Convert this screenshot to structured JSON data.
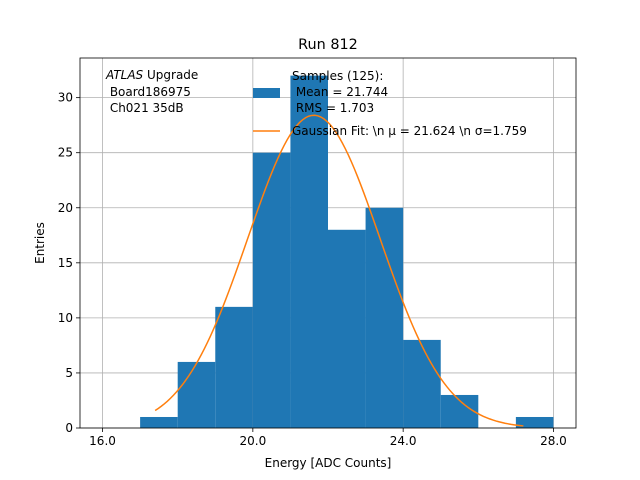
{
  "chart_data": {
    "type": "bar",
    "title": "Run 812",
    "xlabel": "Energy [ADC Counts]",
    "ylabel": "Entries",
    "xlim": [
      15.4,
      28.6
    ],
    "ylim": [
      0,
      33.6
    ],
    "xticks": [
      16.0,
      20.0,
      24.0,
      28.0
    ],
    "xtick_labels": [
      "16.0",
      "20.0",
      "24.0",
      "28.0"
    ],
    "yticks": [
      0,
      5,
      10,
      15,
      20,
      25,
      30
    ],
    "ytick_labels": [
      "0",
      "5",
      "10",
      "15",
      "20",
      "25",
      "30"
    ],
    "grid": true,
    "bins": [
      {
        "x0": 17.0,
        "x1": 18.0,
        "count": 1
      },
      {
        "x0": 18.0,
        "x1": 19.0,
        "count": 6
      },
      {
        "x0": 19.0,
        "x1": 20.0,
        "count": 11
      },
      {
        "x0": 20.0,
        "x1": 21.0,
        "count": 25
      },
      {
        "x0": 21.0,
        "x1": 22.0,
        "count": 32
      },
      {
        "x0": 22.0,
        "x1": 23.0,
        "count": 18
      },
      {
        "x0": 23.0,
        "x1": 24.0,
        "count": 20
      },
      {
        "x0": 24.0,
        "x1": 25.0,
        "count": 8
      },
      {
        "x0": 25.0,
        "x1": 26.0,
        "count": 3
      },
      {
        "x0": 26.0,
        "x1": 27.0,
        "count": 0
      },
      {
        "x0": 27.0,
        "x1": 28.0,
        "count": 1
      }
    ],
    "fit": {
      "mu": 21.624,
      "sigma": 1.759,
      "amplitude": 28.4,
      "x_range": [
        17.4,
        27.2
      ]
    },
    "colors": {
      "hist": "#1f77b4",
      "fit": "#ff7f0e",
      "grid": "#b0b0b0"
    },
    "annotation": {
      "italic": "ATLAS",
      "line1_rest": " Upgrade",
      "line2": " Board186975",
      "line3": " Ch021 35dB"
    },
    "legend": {
      "placement": "top-right",
      "hist_lines": [
        "Samples (125):",
        " Mean = 21.744",
        " RMS = 1.703"
      ],
      "fit_label": "Gaussian Fit: \\n μ = 21.624 \\n σ=1.759"
    }
  }
}
